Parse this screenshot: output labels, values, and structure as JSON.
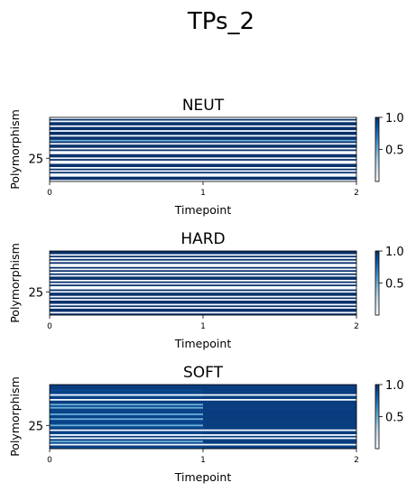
{
  "figure_title": "TPs_2",
  "chart_data": [
    {
      "type": "heatmap",
      "title": "NEUT",
      "xlabel": "Timepoint",
      "ylabel": "Polymorphism",
      "x_ticks": [
        "0",
        "1",
        "2"
      ],
      "y_ticks": [
        "25"
      ],
      "colorbar_ticks": [
        "0.5",
        "1.0"
      ],
      "colormap": "Blues",
      "clim": [
        0,
        1
      ],
      "n_polymorphisms": 40,
      "timepoints": [
        0,
        1
      ],
      "rows": [
        [
          0,
          0
        ],
        [
          1,
          1
        ],
        [
          0,
          0
        ],
        [
          1,
          1
        ],
        [
          1,
          1
        ],
        [
          0,
          0
        ],
        [
          1,
          1
        ],
        [
          1,
          1
        ],
        [
          0,
          0
        ],
        [
          1,
          1
        ],
        [
          1,
          1
        ],
        [
          0,
          0
        ],
        [
          1,
          1
        ],
        [
          1,
          1
        ],
        [
          0.5,
          0.5
        ],
        [
          1,
          1
        ],
        [
          0,
          0
        ],
        [
          1,
          1
        ],
        [
          1,
          1
        ],
        [
          0,
          0
        ],
        [
          1,
          1
        ],
        [
          0,
          0
        ],
        [
          0,
          0
        ],
        [
          1,
          1
        ],
        [
          1,
          1
        ],
        [
          0,
          0
        ],
        [
          1,
          1
        ],
        [
          0,
          0
        ],
        [
          0,
          0
        ],
        [
          1,
          1
        ],
        [
          1,
          1
        ],
        [
          0,
          0
        ],
        [
          1,
          1
        ],
        [
          0,
          0
        ],
        [
          1,
          1
        ],
        [
          0,
          0
        ],
        [
          0,
          0
        ],
        [
          1,
          1
        ],
        [
          1,
          1
        ],
        [
          0,
          0
        ]
      ]
    },
    {
      "type": "heatmap",
      "title": "HARD",
      "xlabel": "Timepoint",
      "ylabel": "Polymorphism",
      "x_ticks": [
        "0",
        "1",
        "2"
      ],
      "y_ticks": [
        "25"
      ],
      "colorbar_ticks": [
        "0.5",
        "1.0"
      ],
      "colormap": "Blues",
      "clim": [
        0,
        1
      ],
      "n_polymorphisms": 40,
      "timepoints": [
        0,
        1
      ],
      "rows": [
        [
          1,
          1
        ],
        [
          1,
          1
        ],
        [
          0,
          0
        ],
        [
          1,
          1
        ],
        [
          0,
          0
        ],
        [
          1,
          1
        ],
        [
          0,
          0
        ],
        [
          1,
          1
        ],
        [
          0,
          0
        ],
        [
          0,
          0
        ],
        [
          1,
          1
        ],
        [
          0,
          0
        ],
        [
          1,
          1
        ],
        [
          0,
          0
        ],
        [
          1,
          1
        ],
        [
          0,
          0
        ],
        [
          1,
          1
        ],
        [
          1,
          1
        ],
        [
          0,
          0
        ],
        [
          1,
          1
        ],
        [
          0,
          0
        ],
        [
          1,
          1
        ],
        [
          0,
          0
        ],
        [
          0,
          0
        ],
        [
          1,
          1
        ],
        [
          0,
          0
        ],
        [
          1,
          1
        ],
        [
          1,
          1
        ],
        [
          0,
          0
        ],
        [
          1,
          1
        ],
        [
          0,
          0
        ],
        [
          1,
          1
        ],
        [
          1,
          1
        ],
        [
          0,
          0
        ],
        [
          1,
          1
        ],
        [
          0,
          0
        ],
        [
          1,
          1
        ],
        [
          1,
          1
        ],
        [
          0,
          0
        ],
        [
          1,
          1
        ]
      ]
    },
    {
      "type": "heatmap",
      "title": "SOFT",
      "xlabel": "Timepoint",
      "ylabel": "Polymorphism",
      "x_ticks": [
        "0",
        "1",
        "2"
      ],
      "y_ticks": [
        "25"
      ],
      "colorbar_ticks": [
        "0.5",
        "1.0"
      ],
      "colormap": "Blues",
      "clim": [
        0,
        1
      ],
      "n_polymorphisms": 40,
      "timepoints": [
        0,
        1
      ],
      "rows": [
        [
          0.95,
          0.95
        ],
        [
          0.95,
          0.95
        ],
        [
          0.95,
          0.95
        ],
        [
          0.9,
          0.95
        ],
        [
          0.95,
          0.95
        ],
        [
          0.9,
          0.95
        ],
        [
          0,
          0
        ],
        [
          0.9,
          0.95
        ],
        [
          0.95,
          0.95
        ],
        [
          0,
          0
        ],
        [
          0.95,
          0.95
        ],
        [
          0.95,
          0.95
        ],
        [
          0.5,
          0.95
        ],
        [
          0.9,
          0.95
        ],
        [
          0.5,
          0.95
        ],
        [
          0.95,
          0.95
        ],
        [
          0.9,
          0.95
        ],
        [
          0.95,
          0.95
        ],
        [
          0.5,
          0.95
        ],
        [
          0.9,
          0.95
        ],
        [
          0.95,
          0.95
        ],
        [
          0.5,
          0.95
        ],
        [
          0.9,
          0.95
        ],
        [
          0.95,
          0.95
        ],
        [
          0.9,
          0.95
        ],
        [
          0.5,
          0.95
        ],
        [
          0.9,
          0.95
        ],
        [
          0.95,
          0.95
        ],
        [
          0,
          0
        ],
        [
          0.95,
          0.95
        ],
        [
          0.9,
          0.95
        ],
        [
          0,
          0
        ],
        [
          0.95,
          0.95
        ],
        [
          0,
          0
        ],
        [
          0.95,
          0.95
        ],
        [
          0.5,
          0.95
        ],
        [
          0.9,
          0.95
        ],
        [
          0,
          0
        ],
        [
          0.95,
          0.95
        ],
        [
          0.9,
          0.95
        ]
      ]
    }
  ]
}
